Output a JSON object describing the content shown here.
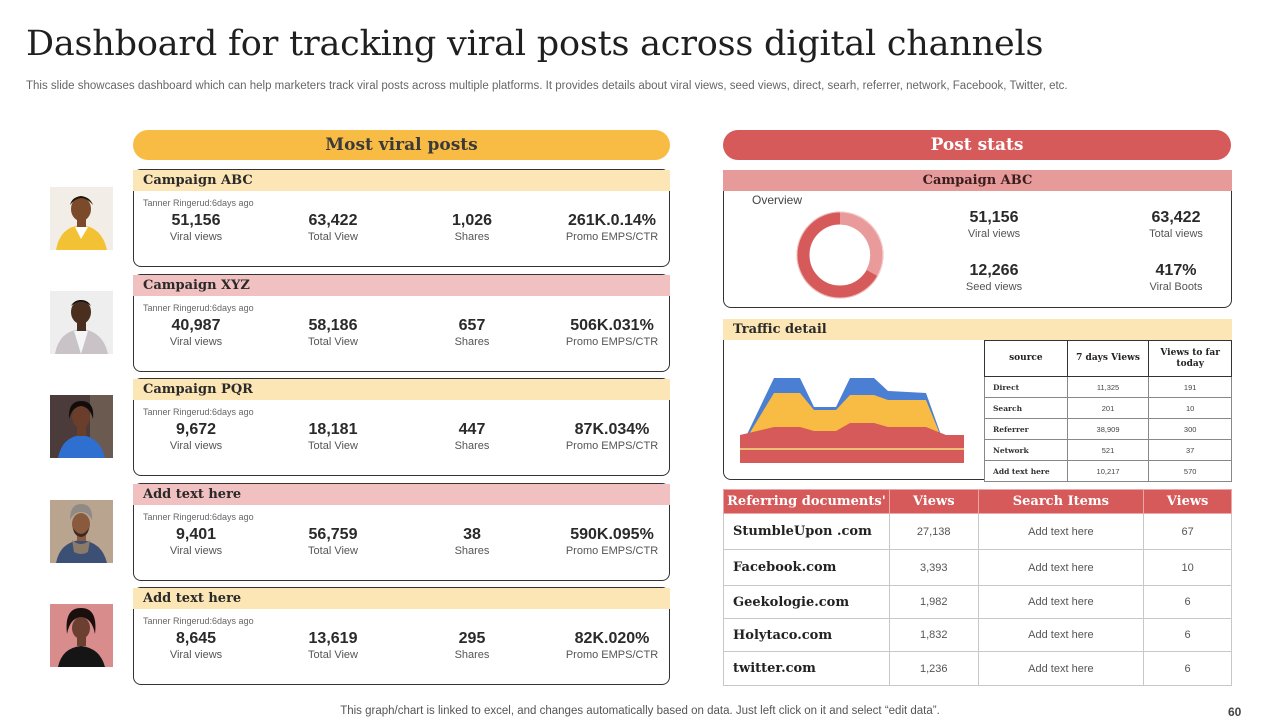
{
  "header": {
    "title": "Dashboard for tracking viral posts across digital channels",
    "subtitle": "This slide showcases dashboard which can help marketers track viral posts across multiple platforms. It provides details about viral views, seed views, direct, searh, referrer, network,  Facebook, Twitter,  etc."
  },
  "viral": {
    "heading": "Most viral posts",
    "labels": {
      "viral_views": "Viral views",
      "total_view": "Total View",
      "shares": "Shares",
      "promo": "Promo EMPS/CTR"
    },
    "cards": [
      {
        "campaign": "Campaign ABC",
        "meta": "Tanner Ringerud:6days ago",
        "viral": "51,156",
        "total": "63,422",
        "shares": "1,026",
        "promo": "261K.0.14%"
      },
      {
        "campaign": "Campaign XYZ",
        "meta": "Tanner Ringerud:6days ago",
        "viral": "40,987",
        "total": "58,186",
        "shares": "657",
        "promo": "506K.031%"
      },
      {
        "campaign": "Campaign PQR",
        "meta": "Tanner Ringerud:6days ago",
        "viral": "9,672",
        "total": "18,181",
        "shares": "447",
        "promo": "87K.034%"
      },
      {
        "campaign": "Add text here",
        "meta": "Tanner Ringerud:6days ago",
        "viral": "9,401",
        "total": "56,759",
        "shares": "38",
        "promo": "590K.095%"
      },
      {
        "campaign": "Add text here",
        "meta": "Tanner Ringerud:6days ago",
        "viral": "8,645",
        "total": "13,619",
        "shares": "295",
        "promo": "82K.020%"
      }
    ]
  },
  "post_stats": {
    "heading": "Post stats",
    "campaign": "Campaign ABC",
    "overview_label": "Overview",
    "viral_views": "51,156",
    "viral_views_label": "Viral views",
    "total_views": "63,422",
    "total_views_label": "Total views",
    "seed_views": "12,266",
    "seed_views_label": "Seed views",
    "viral_boots": "417%",
    "viral_boots_label": "Viral Boots"
  },
  "traffic": {
    "heading": "Traffic detail",
    "columns": [
      "source",
      "7 days Views",
      "Views to far today"
    ],
    "rows": [
      {
        "source": "Direct",
        "week": "11,325",
        "today": "191"
      },
      {
        "source": "Search",
        "week": "201",
        "today": "10"
      },
      {
        "source": "Referrer",
        "week": "38,909",
        "today": "300"
      },
      {
        "source": "Network",
        "week": "521",
        "today": "37"
      },
      {
        "source": "Add text here",
        "week": "10,217",
        "today": "570"
      }
    ]
  },
  "referring": {
    "columns": [
      "Referring documents'",
      "Views",
      "Search Items",
      "Views"
    ],
    "rows": [
      {
        "site": "StumbleUpon .com",
        "views": "27,138",
        "item": "Add text here",
        "item_views": "67"
      },
      {
        "site": "Facebook.com",
        "views": "3,393",
        "item": "Add text here",
        "item_views": "10"
      },
      {
        "site": "Geekologie.com",
        "views": "1,982",
        "item": "Add text here",
        "item_views": "6"
      },
      {
        "site": "Holytaco.com",
        "views": "1,832",
        "item": "Add text here",
        "item_views": "6"
      },
      {
        "site": "twitter.com",
        "views": "1,236",
        "item": "Add text here",
        "item_views": "6"
      }
    ]
  },
  "footer": {
    "note": "This graph/chart is linked to excel,  and changes automatically based on data. Just left click on it and select “edit data”.",
    "page": "60"
  },
  "colors": {
    "yellow": "#f8bb44",
    "red": "#d65a5a",
    "pink": "#f1c0c0",
    "pale_yellow": "#fde6b5",
    "blue": "#4a7fd4"
  }
}
